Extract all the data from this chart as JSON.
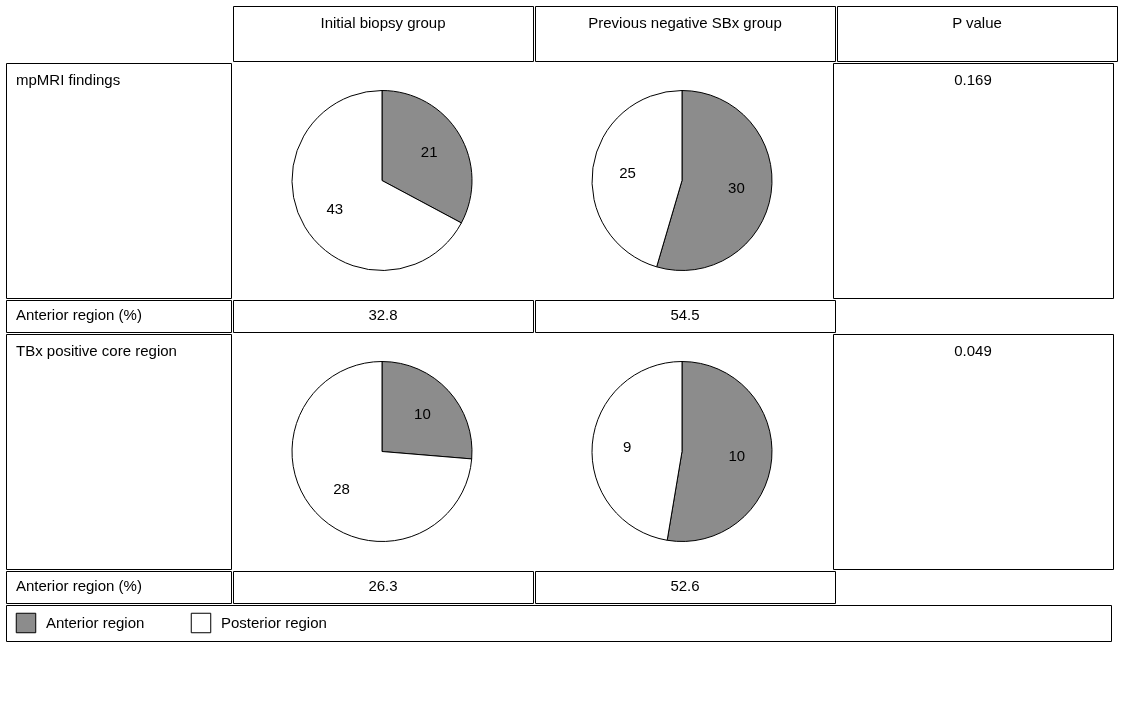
{
  "chart_data": [
    {
      "type": "pie",
      "title": "Initial biopsy group",
      "annotations": [
        "mpMRI findings",
        "Anterior region (%)",
        "32.8"
      ],
      "categories": [
        "Anterior region",
        "Posterior region"
      ],
      "values": [
        21,
        43
      ],
      "colors": [
        "#8c8c8c",
        "#ffffff"
      ],
      "data_labels": true,
      "legend": "bottom"
    },
    {
      "type": "pie",
      "title": "Previous negative SBx group",
      "annotations": [
        "54.5",
        "P value",
        "0.169"
      ],
      "categories": [
        null,
        null
      ],
      "values": [
        30,
        25
      ],
      "colors": [
        "#8c8c8c",
        "#ffffff"
      ],
      "data_labels": true
    },
    {
      "type": "pie",
      "annotations": [
        "TBx positive core region",
        "Anterior region (%)",
        "26.3"
      ],
      "categories": [
        null,
        null
      ],
      "values": [
        10,
        28
      ],
      "colors": [
        "#8c8c8c",
        "#ffffff"
      ],
      "data_labels": true
    },
    {
      "type": "pie",
      "annotations": [
        "52.6",
        "0.049"
      ],
      "categories": [
        null,
        null
      ],
      "values": [
        10,
        9
      ],
      "colors": [
        "#8c8c8c",
        "#ffffff"
      ],
      "data_labels": true
    }
  ]
}
